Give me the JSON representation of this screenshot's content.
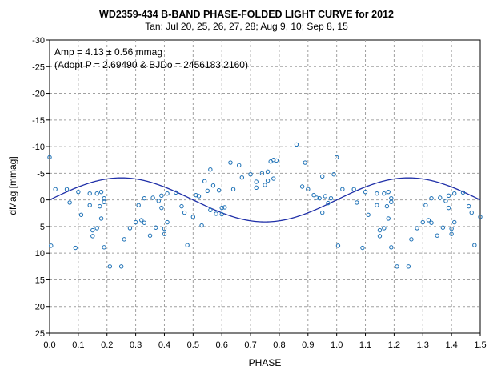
{
  "chart_data": {
    "type": "scatter",
    "title": "WD2359-434  B-BAND  PHASE-FOLDED  LIGHT  CURVE  for 2012",
    "subtitle": "Tan: Jul 20, 25, 26, 27, 28; Aug 9, 10; Sep 8, 15",
    "xlabel": "PHASE",
    "ylabel": "dMag [mmag]",
    "xlim": [
      0.0,
      1.5
    ],
    "ylim": [
      25,
      -30
    ],
    "y_inverted": true,
    "grid": true,
    "x_ticks": [
      "0.0",
      "0.1",
      "0.2",
      "0.3",
      "0.4",
      "0.5",
      "0.6",
      "0.7",
      "0.8",
      "0.9",
      "1.0",
      "1.1",
      "1.2",
      "1.3",
      "1.4",
      "1.5"
    ],
    "y_ticks": [
      "-30",
      "-25",
      "-20",
      "-15",
      "-10",
      "-5",
      "0",
      "5",
      "10",
      "15",
      "20",
      "25"
    ],
    "annotations": [
      "Amp = 4.13 ± 0.56 mmag",
      "(Adopt P = 2.69490  & BJDo = 2456183.2160)"
    ],
    "colors": {
      "points": "#1a6fb5",
      "fit": "#1f2fa8",
      "grid": "#a0a0a0"
    },
    "series": [
      {
        "points": [
          [
            0.0,
            -8.0
          ],
          [
            0.005,
            8.6
          ],
          [
            0.02,
            -2.0
          ],
          [
            0.06,
            -2.0
          ],
          [
            0.07,
            0.5
          ],
          [
            0.09,
            9.0
          ],
          [
            0.1,
            -1.5
          ],
          [
            0.11,
            2.8
          ],
          [
            0.14,
            1.0
          ],
          [
            0.14,
            -1.2
          ],
          [
            0.15,
            5.7
          ],
          [
            0.15,
            6.8
          ],
          [
            0.165,
            -1.2
          ],
          [
            0.165,
            5.3
          ],
          [
            0.175,
            1.2
          ],
          [
            0.18,
            -1.5
          ],
          [
            0.18,
            3.5
          ],
          [
            0.19,
            0.4
          ],
          [
            0.19,
            -0.3
          ],
          [
            0.19,
            8.9
          ],
          [
            0.21,
            12.5
          ],
          [
            0.25,
            12.5
          ],
          [
            0.26,
            7.4
          ],
          [
            0.28,
            5.3
          ],
          [
            0.3,
            4.2
          ],
          [
            0.31,
            1.0
          ],
          [
            0.32,
            3.8
          ],
          [
            0.33,
            -0.3
          ],
          [
            0.33,
            4.3
          ],
          [
            0.35,
            6.7
          ],
          [
            0.36,
            -0.4
          ],
          [
            0.37,
            5.2
          ],
          [
            0.38,
            0.2
          ],
          [
            0.39,
            -0.8
          ],
          [
            0.39,
            1.5
          ],
          [
            0.4,
            5.4
          ],
          [
            0.4,
            6.4
          ],
          [
            0.41,
            -1.2
          ],
          [
            0.41,
            4.2
          ],
          [
            0.44,
            -1.4
          ],
          [
            0.46,
            1.2
          ],
          [
            0.47,
            2.4
          ],
          [
            0.48,
            8.5
          ],
          [
            0.5,
            3.2
          ],
          [
            0.51,
            -0.9
          ],
          [
            0.52,
            -0.7
          ],
          [
            0.53,
            4.8
          ],
          [
            0.54,
            -3.5
          ],
          [
            0.55,
            -1.7
          ],
          [
            0.56,
            1.9
          ],
          [
            0.56,
            -5.7
          ],
          [
            0.57,
            -2.7
          ],
          [
            0.58,
            2.6
          ],
          [
            0.59,
            -1.8
          ],
          [
            0.6,
            1.5
          ],
          [
            0.6,
            2.7
          ],
          [
            0.61,
            1.4
          ],
          [
            0.63,
            -7.0
          ],
          [
            0.64,
            -2.0
          ],
          [
            0.66,
            -6.5
          ],
          [
            0.67,
            -4.2
          ],
          [
            0.7,
            -4.8
          ],
          [
            0.72,
            -2.3
          ],
          [
            0.72,
            -3.4
          ],
          [
            0.74,
            -5.0
          ],
          [
            0.75,
            -2.8
          ],
          [
            0.76,
            -3.6
          ],
          [
            0.76,
            -5.3
          ],
          [
            0.77,
            -7.2
          ],
          [
            0.78,
            -7.5
          ],
          [
            0.78,
            -4.0
          ],
          [
            0.79,
            -7.4
          ],
          [
            0.86,
            -10.4
          ],
          [
            0.88,
            -2.5
          ],
          [
            0.89,
            -7.0
          ],
          [
            0.9,
            -2.0
          ],
          [
            0.92,
            -0.9
          ],
          [
            0.93,
            -0.4
          ],
          [
            0.94,
            -0.3
          ],
          [
            0.95,
            2.4
          ],
          [
            0.95,
            -4.4
          ],
          [
            0.96,
            -0.7
          ],
          [
            0.97,
            0.6
          ],
          [
            0.98,
            -0.3
          ],
          [
            0.99,
            -4.8
          ],
          [
            1.0,
            -8.0
          ],
          [
            1.005,
            8.6
          ],
          [
            1.02,
            -2.0
          ],
          [
            1.06,
            -2.0
          ],
          [
            1.07,
            0.5
          ],
          [
            1.09,
            9.0
          ],
          [
            1.1,
            -1.5
          ],
          [
            1.11,
            2.8
          ],
          [
            1.14,
            1.0
          ],
          [
            1.14,
            -1.2
          ],
          [
            1.15,
            5.7
          ],
          [
            1.15,
            6.8
          ],
          [
            1.165,
            -1.2
          ],
          [
            1.165,
            5.3
          ],
          [
            1.175,
            1.2
          ],
          [
            1.18,
            -1.5
          ],
          [
            1.18,
            3.5
          ],
          [
            1.19,
            0.4
          ],
          [
            1.19,
            -0.3
          ],
          [
            1.19,
            8.9
          ],
          [
            1.21,
            12.5
          ],
          [
            1.25,
            12.5
          ],
          [
            1.26,
            7.4
          ],
          [
            1.28,
            5.3
          ],
          [
            1.3,
            4.2
          ],
          [
            1.31,
            1.0
          ],
          [
            1.32,
            3.8
          ],
          [
            1.33,
            -0.3
          ],
          [
            1.33,
            4.3
          ],
          [
            1.35,
            6.7
          ],
          [
            1.36,
            -0.4
          ],
          [
            1.37,
            5.2
          ],
          [
            1.38,
            0.2
          ],
          [
            1.39,
            -0.8
          ],
          [
            1.39,
            1.5
          ],
          [
            1.4,
            5.4
          ],
          [
            1.4,
            6.4
          ],
          [
            1.41,
            -1.2
          ],
          [
            1.41,
            4.2
          ],
          [
            1.44,
            -1.4
          ],
          [
            1.46,
            1.2
          ],
          [
            1.47,
            2.4
          ],
          [
            1.48,
            8.5
          ],
          [
            1.5,
            3.2
          ]
        ]
      },
      {
        "type": "line",
        "function": "dmag = -4.13 * sin(2*pi*phase)",
        "amplitude": 4.13
      }
    ]
  }
}
